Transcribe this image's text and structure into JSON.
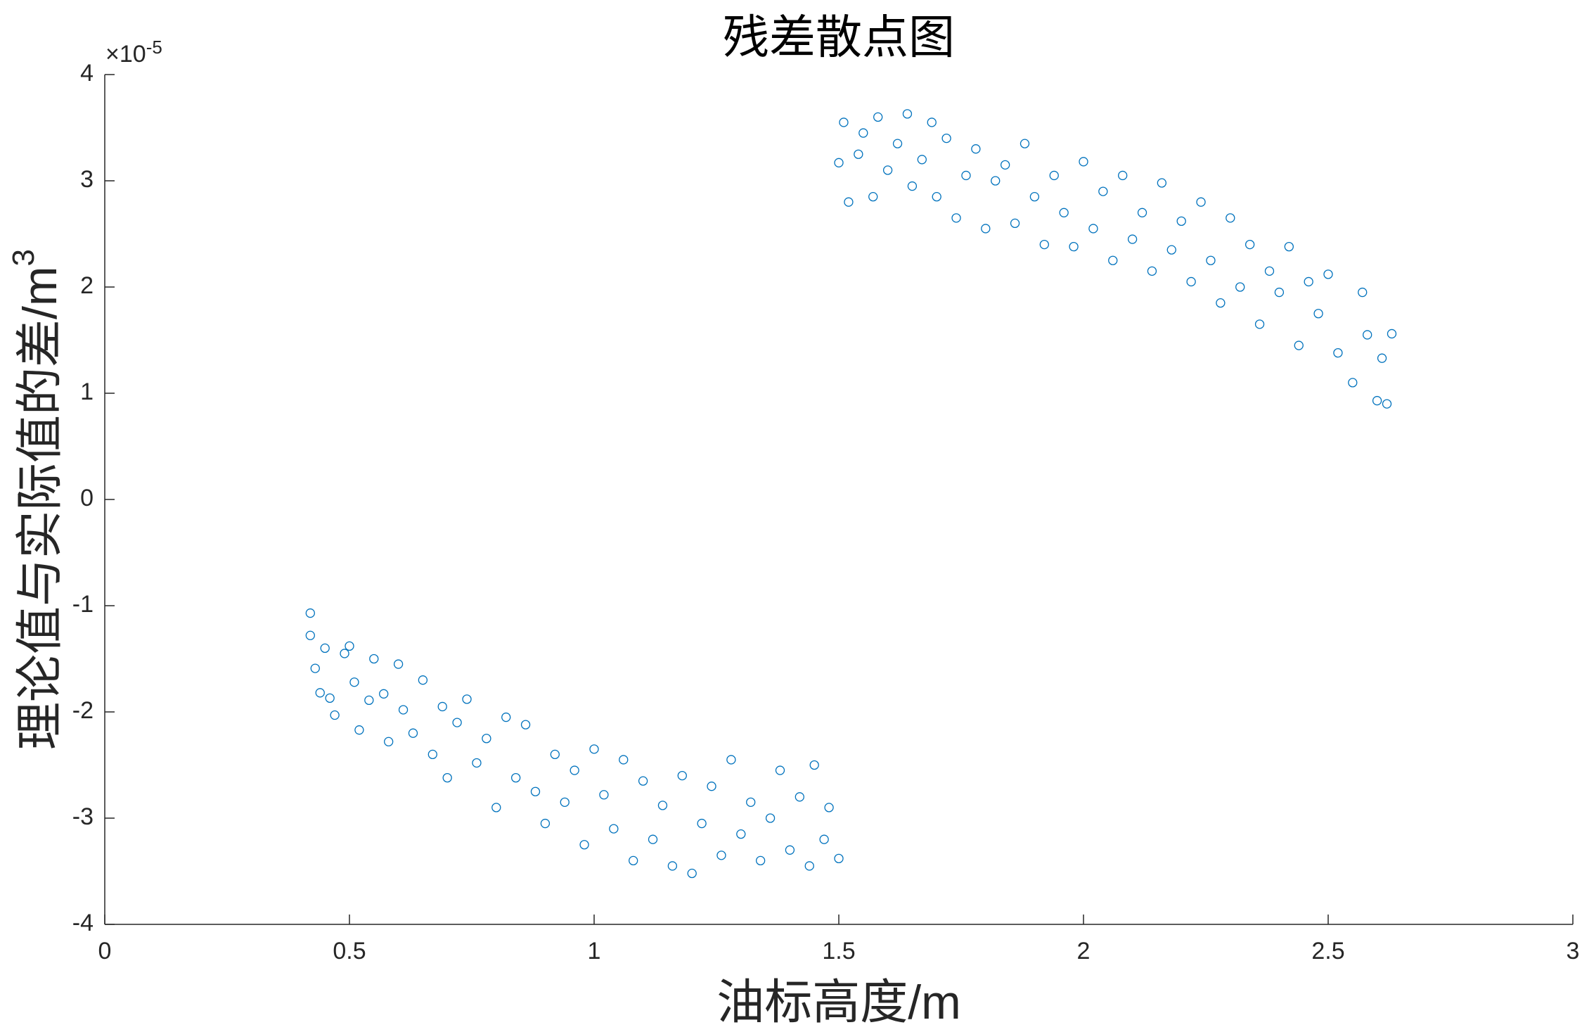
{
  "chart_data": {
    "type": "scatter",
    "title": "残差散点图",
    "xlabel": "油标高度/m",
    "ylabel": "理论值与实际值的差/m",
    "ylabel_superscript": "3",
    "y_multiplier": {
      "base": "×10",
      "exponent": "-5"
    },
    "color": "#0072bd",
    "xlim": [
      0,
      3
    ],
    "xticks": [
      0,
      0.5,
      1,
      1.5,
      2,
      2.5,
      3
    ],
    "ylim": [
      -4,
      4
    ],
    "yticks": [
      -4,
      -3,
      -2,
      -1,
      0,
      1,
      2,
      3,
      4
    ],
    "x": [
      0.42,
      0.42,
      0.43,
      0.44,
      0.45,
      0.46,
      0.47,
      0.49,
      0.5,
      0.51,
      0.52,
      0.54,
      0.55,
      0.57,
      0.58,
      0.6,
      0.61,
      0.63,
      0.65,
      0.67,
      0.69,
      0.7,
      0.72,
      0.74,
      0.76,
      0.78,
      0.8,
      0.82,
      0.84,
      0.86,
      0.88,
      0.9,
      0.92,
      0.94,
      0.96,
      0.98,
      1.0,
      1.02,
      1.04,
      1.06,
      1.08,
      1.1,
      1.12,
      1.14,
      1.16,
      1.18,
      1.2,
      1.22,
      1.24,
      1.26,
      1.28,
      1.3,
      1.32,
      1.34,
      1.36,
      1.38,
      1.4,
      1.42,
      1.44,
      1.45,
      1.47,
      1.48,
      1.5,
      1.5,
      1.51,
      1.52,
      1.54,
      1.55,
      1.57,
      1.58,
      1.6,
      1.62,
      1.64,
      1.65,
      1.67,
      1.69,
      1.7,
      1.72,
      1.74,
      1.76,
      1.78,
      1.8,
      1.82,
      1.84,
      1.86,
      1.88,
      1.9,
      1.92,
      1.94,
      1.96,
      1.98,
      2.0,
      2.02,
      2.04,
      2.06,
      2.08,
      2.1,
      2.12,
      2.14,
      2.16,
      2.18,
      2.2,
      2.22,
      2.24,
      2.26,
      2.28,
      2.3,
      2.32,
      2.34,
      2.36,
      2.38,
      2.4,
      2.42,
      2.44,
      2.46,
      2.48,
      2.5,
      2.52,
      2.55,
      2.57,
      2.58,
      2.6,
      2.61,
      2.62,
      2.63
    ],
    "values": [
      -1.07,
      -1.28,
      -1.59,
      -1.82,
      -1.4,
      -1.87,
      -2.03,
      -1.45,
      -1.38,
      -1.72,
      -2.17,
      -1.89,
      -1.5,
      -1.83,
      -2.28,
      -1.55,
      -1.98,
      -2.2,
      -1.7,
      -2.4,
      -1.95,
      -2.62,
      -2.1,
      -1.88,
      -2.48,
      -2.25,
      -2.9,
      -2.05,
      -2.62,
      -2.12,
      -2.75,
      -3.05,
      -2.4,
      -2.85,
      -2.55,
      -3.25,
      -2.35,
      -2.78,
      -3.1,
      -2.45,
      -3.4,
      -2.65,
      -3.2,
      -2.88,
      -3.45,
      -2.6,
      -3.52,
      -3.05,
      -2.7,
      -3.35,
      -2.45,
      -3.15,
      -2.85,
      -3.4,
      -3.0,
      -2.55,
      -3.3,
      -2.8,
      -3.45,
      -2.5,
      -3.2,
      -2.9,
      -3.38,
      3.17,
      3.55,
      2.8,
      3.25,
      3.45,
      2.85,
      3.6,
      3.1,
      3.35,
      3.63,
      2.95,
      3.2,
      3.55,
      2.85,
      3.4,
      2.65,
      3.05,
      3.3,
      2.55,
      3.0,
      3.15,
      2.6,
      3.35,
      2.85,
      2.4,
      3.05,
      2.7,
      2.38,
      3.18,
      2.55,
      2.9,
      2.25,
      3.05,
      2.45,
      2.7,
      2.15,
      2.98,
      2.35,
      2.62,
      2.05,
      2.8,
      2.25,
      1.85,
      2.65,
      2.0,
      2.4,
      1.65,
      2.15,
      1.95,
      2.38,
      1.45,
      2.05,
      1.75,
      2.12,
      1.38,
      1.1,
      1.95,
      1.55,
      0.93,
      1.33,
      0.9,
      1.56
    ]
  }
}
